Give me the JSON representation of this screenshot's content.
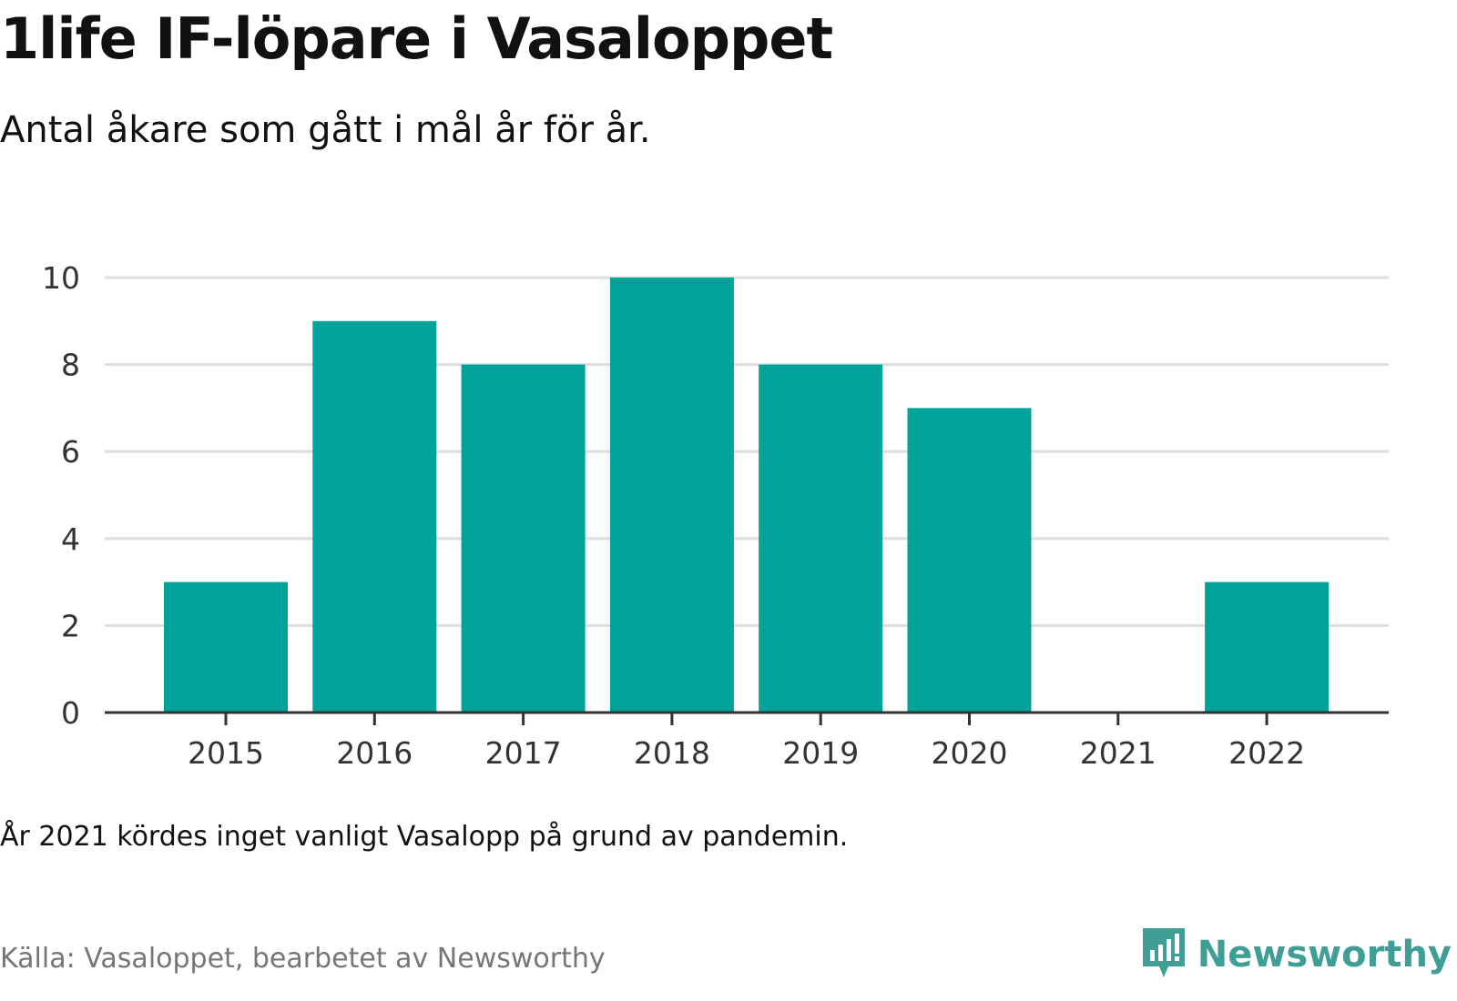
{
  "header": {
    "title": "1life IF-löpare i Vasaloppet",
    "subtitle": "Antal åkare som gått i mål år för år."
  },
  "footer": {
    "note": "År 2021 kördes inget vanligt Vasalopp på grund av pandemin.",
    "source": "Källa: Vasaloppet, bearbetet av Newsworthy",
    "brand": "Newsworthy",
    "brand_icon": "bar-chart-bubble-icon"
  },
  "colors": {
    "bar": "#00a39a",
    "grid": "#dddddd",
    "axis": "#333333",
    "brand": "#3f9e96"
  },
  "chart_data": {
    "type": "bar",
    "categories": [
      "2015",
      "2016",
      "2017",
      "2018",
      "2019",
      "2020",
      "2021",
      "2022"
    ],
    "values": [
      3,
      9,
      8,
      10,
      8,
      7,
      0,
      3
    ],
    "yticks": [
      0,
      2,
      4,
      6,
      8,
      10
    ],
    "ylim": [
      0,
      10
    ],
    "grid": true,
    "xlabel": "",
    "ylabel": ""
  }
}
